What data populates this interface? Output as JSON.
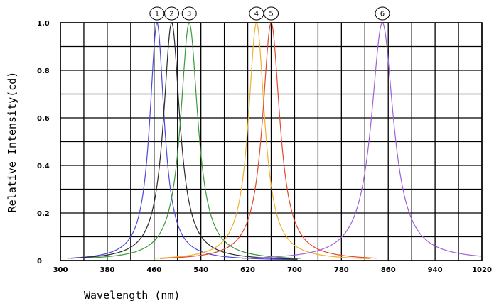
{
  "chart_data": {
    "type": "line",
    "title": "",
    "xlabel": "Wavelength (nm)",
    "ylabel": "Relative Intensity(cd)",
    "xlim": [
      300,
      1020
    ],
    "ylim": [
      0,
      1.0
    ],
    "x_tick_labels": [
      "300",
      "380",
      "460",
      "540",
      "620",
      "700",
      "780",
      "860",
      "940",
      "1020"
    ],
    "y_tick_labels": [
      "0",
      "0.2",
      "0.4",
      "0.6",
      "0.8",
      "1.0"
    ],
    "x_tick_values": [
      300,
      380,
      460,
      540,
      620,
      700,
      780,
      860,
      940,
      1020
    ],
    "y_tick_values": [
      0,
      0.2,
      0.4,
      0.6,
      0.8,
      1.0
    ],
    "grid": true,
    "series": [
      {
        "name": "1",
        "color": "#4a4ad8",
        "peak": 465,
        "fwhm": 30,
        "x_min": 312,
        "x_max": 705
      },
      {
        "name": "2",
        "color": "#2a2a2a",
        "peak": 490,
        "fwhm": 34,
        "x_min": 318,
        "x_max": 705
      },
      {
        "name": "3",
        "color": "#3a9a3a",
        "peak": 520,
        "fwhm": 36,
        "x_min": 345,
        "x_max": 710
      },
      {
        "name": "4",
        "color": "#f0b030",
        "peak": 635,
        "fwhm": 34,
        "x_min": 460,
        "x_max": 830
      },
      {
        "name": "5",
        "color": "#e04a2a",
        "peak": 660,
        "fwhm": 36,
        "x_min": 470,
        "x_max": 840
      },
      {
        "name": "6",
        "color": "#a060d8",
        "peak": 850,
        "fwhm": 46,
        "x_min": 610,
        "x_max": 1020
      }
    ]
  }
}
